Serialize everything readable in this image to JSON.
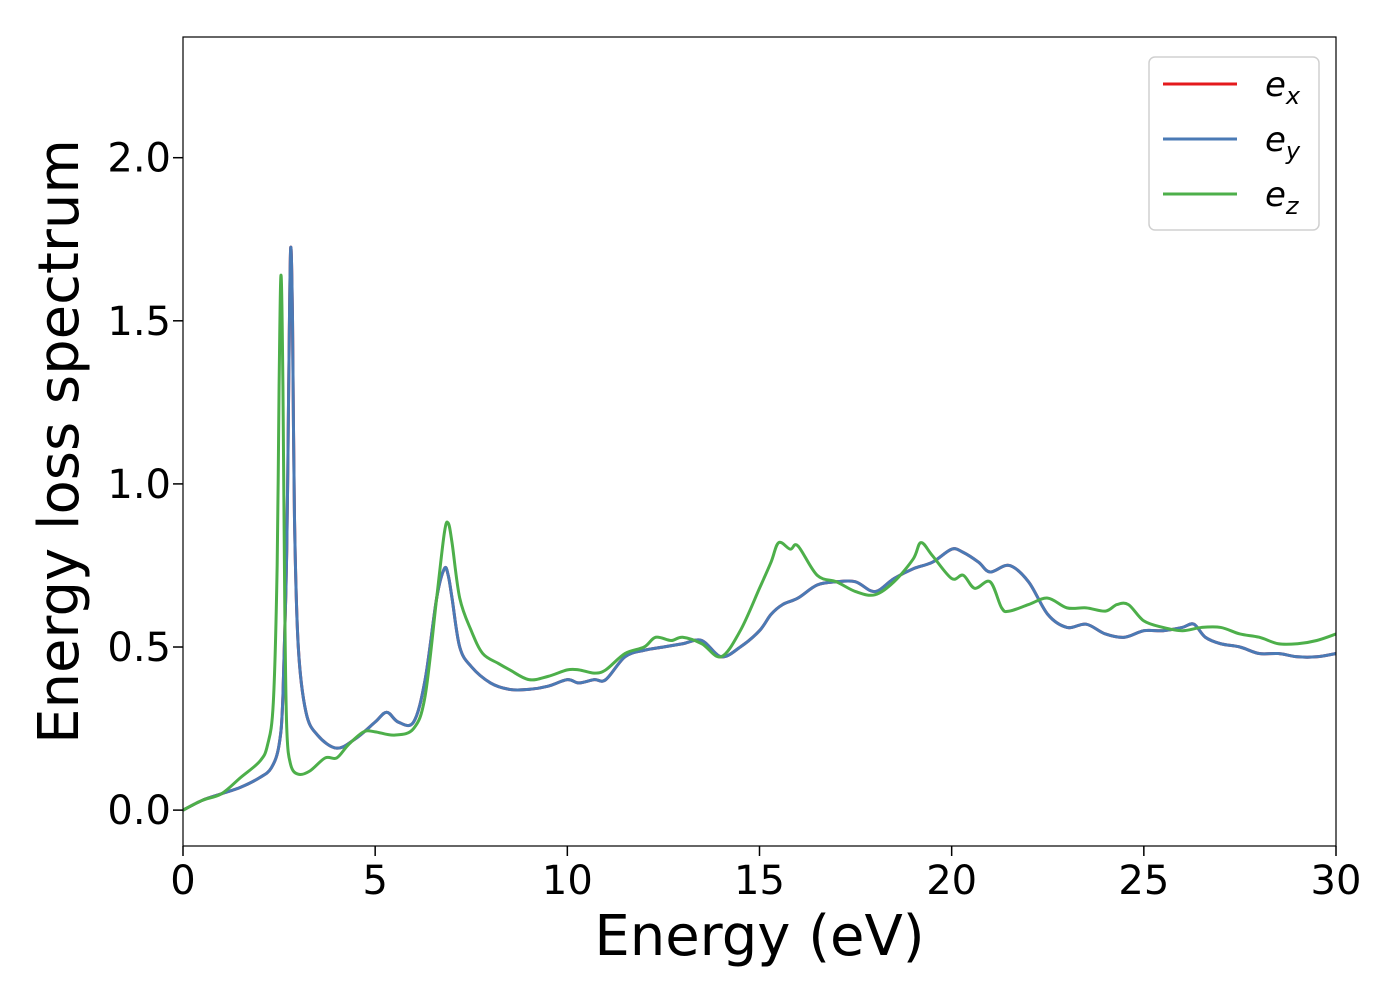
{
  "chart_data": {
    "type": "line",
    "title": "",
    "xlabel": "Energy (eV)",
    "ylabel": "Energy loss spectrum",
    "xlim": [
      0,
      30
    ],
    "ylim": [
      -0.11,
      2.37
    ],
    "xticks": [
      0,
      5,
      10,
      15,
      20,
      25,
      30
    ],
    "yticks": [
      0.0,
      0.5,
      1.0,
      1.5,
      2.0
    ],
    "ytick_labels": [
      "0.0",
      "0.5",
      "1.0",
      "1.5",
      "2.0"
    ],
    "grid": false,
    "legend_position": "top-right",
    "series": [
      {
        "name": "e",
        "subscript": "x",
        "color": "#e41a1c",
        "x": [
          0,
          0.5,
          1,
          1.5,
          2,
          2.3,
          2.5,
          2.6,
          2.7,
          2.75,
          2.8,
          2.85,
          2.9,
          3,
          3.2,
          3.5,
          4,
          4.5,
          5,
          5.3,
          5.6,
          6,
          6.3,
          6.6,
          6.8,
          6.9,
          7,
          7.2,
          7.5,
          8,
          8.5,
          9,
          9.5,
          10,
          10.3,
          10.7,
          11,
          11.5,
          12,
          12.5,
          13,
          13.5,
          14,
          14.5,
          15,
          15.3,
          15.6,
          16,
          16.5,
          17,
          17.5,
          18,
          18.5,
          19,
          19.5,
          20,
          20.3,
          20.7,
          21,
          21.5,
          22,
          22.5,
          23,
          23.5,
          24,
          24.5,
          25,
          25.5,
          26,
          26.3,
          26.6,
          27,
          27.5,
          28,
          28.5,
          29,
          29.5,
          30
        ],
        "y": [
          0,
          0.03,
          0.05,
          0.07,
          0.1,
          0.13,
          0.2,
          0.35,
          0.8,
          1.3,
          1.72,
          1.5,
          0.9,
          0.5,
          0.3,
          0.23,
          0.19,
          0.22,
          0.27,
          0.3,
          0.27,
          0.27,
          0.4,
          0.65,
          0.74,
          0.72,
          0.65,
          0.5,
          0.44,
          0.39,
          0.37,
          0.37,
          0.38,
          0.4,
          0.39,
          0.4,
          0.4,
          0.47,
          0.49,
          0.5,
          0.51,
          0.52,
          0.47,
          0.5,
          0.55,
          0.6,
          0.63,
          0.65,
          0.69,
          0.7,
          0.7,
          0.67,
          0.71,
          0.74,
          0.76,
          0.8,
          0.79,
          0.76,
          0.73,
          0.75,
          0.7,
          0.6,
          0.56,
          0.57,
          0.54,
          0.53,
          0.55,
          0.55,
          0.56,
          0.57,
          0.53,
          0.51,
          0.5,
          0.48,
          0.48,
          0.47,
          0.47,
          0.48
        ]
      },
      {
        "name": "e",
        "subscript": "y",
        "color": "#4a7ab5",
        "x": [
          0,
          0.5,
          1,
          1.5,
          2,
          2.3,
          2.5,
          2.6,
          2.7,
          2.75,
          2.8,
          2.85,
          2.9,
          3,
          3.2,
          3.5,
          4,
          4.5,
          5,
          5.3,
          5.6,
          6,
          6.3,
          6.6,
          6.8,
          6.9,
          7,
          7.2,
          7.5,
          8,
          8.5,
          9,
          9.5,
          10,
          10.3,
          10.7,
          11,
          11.5,
          12,
          12.5,
          13,
          13.5,
          14,
          14.5,
          15,
          15.3,
          15.6,
          16,
          16.5,
          17,
          17.5,
          18,
          18.5,
          19,
          19.5,
          20,
          20.3,
          20.7,
          21,
          21.5,
          22,
          22.5,
          23,
          23.5,
          24,
          24.5,
          25,
          25.5,
          26,
          26.3,
          26.6,
          27,
          27.5,
          28,
          28.5,
          29,
          29.5,
          30
        ],
        "y": [
          0,
          0.03,
          0.05,
          0.07,
          0.1,
          0.13,
          0.2,
          0.35,
          0.8,
          1.3,
          1.72,
          1.5,
          0.9,
          0.5,
          0.3,
          0.23,
          0.19,
          0.22,
          0.27,
          0.3,
          0.27,
          0.27,
          0.4,
          0.65,
          0.74,
          0.72,
          0.65,
          0.5,
          0.44,
          0.39,
          0.37,
          0.37,
          0.38,
          0.4,
          0.39,
          0.4,
          0.4,
          0.47,
          0.49,
          0.5,
          0.51,
          0.52,
          0.47,
          0.5,
          0.55,
          0.6,
          0.63,
          0.65,
          0.69,
          0.7,
          0.7,
          0.67,
          0.71,
          0.74,
          0.76,
          0.8,
          0.79,
          0.76,
          0.73,
          0.75,
          0.7,
          0.6,
          0.56,
          0.57,
          0.54,
          0.53,
          0.55,
          0.55,
          0.56,
          0.57,
          0.53,
          0.51,
          0.5,
          0.48,
          0.48,
          0.47,
          0.47,
          0.48
        ]
      },
      {
        "name": "e",
        "subscript": "z",
        "color": "#4daf4a",
        "x": [
          0,
          0.5,
          1,
          1.5,
          2,
          2.2,
          2.35,
          2.45,
          2.5,
          2.55,
          2.6,
          2.65,
          2.7,
          2.8,
          3,
          3.3,
          3.7,
          4,
          4.3,
          4.7,
          5,
          5.5,
          6,
          6.3,
          6.6,
          6.8,
          6.9,
          7,
          7.2,
          7.5,
          7.8,
          8.2,
          8.5,
          9,
          9.5,
          10,
          10.3,
          10.7,
          11,
          11.5,
          12,
          12.3,
          12.7,
          13,
          13.5,
          14,
          14.5,
          15,
          15.3,
          15.5,
          15.8,
          16,
          16.5,
          17,
          17.5,
          18,
          18.5,
          19,
          19.2,
          19.5,
          20,
          20.3,
          20.6,
          21,
          21.3,
          21.5,
          22,
          22.5,
          23,
          23.5,
          24,
          24.3,
          24.6,
          25,
          25.5,
          26,
          26.5,
          27,
          27.5,
          28,
          28.5,
          29,
          29.5,
          30
        ],
        "y": [
          0,
          0.03,
          0.05,
          0.1,
          0.15,
          0.2,
          0.33,
          0.75,
          1.3,
          1.64,
          1.3,
          0.6,
          0.25,
          0.14,
          0.11,
          0.12,
          0.16,
          0.16,
          0.2,
          0.24,
          0.24,
          0.23,
          0.25,
          0.35,
          0.65,
          0.85,
          0.88,
          0.82,
          0.65,
          0.55,
          0.48,
          0.45,
          0.43,
          0.4,
          0.41,
          0.43,
          0.43,
          0.42,
          0.43,
          0.48,
          0.5,
          0.53,
          0.52,
          0.53,
          0.51,
          0.47,
          0.55,
          0.68,
          0.76,
          0.82,
          0.8,
          0.81,
          0.72,
          0.7,
          0.67,
          0.66,
          0.7,
          0.77,
          0.82,
          0.78,
          0.71,
          0.72,
          0.68,
          0.7,
          0.62,
          0.61,
          0.63,
          0.65,
          0.62,
          0.62,
          0.61,
          0.63,
          0.63,
          0.58,
          0.56,
          0.55,
          0.56,
          0.56,
          0.54,
          0.53,
          0.51,
          0.51,
          0.52,
          0.54
        ]
      }
    ]
  }
}
